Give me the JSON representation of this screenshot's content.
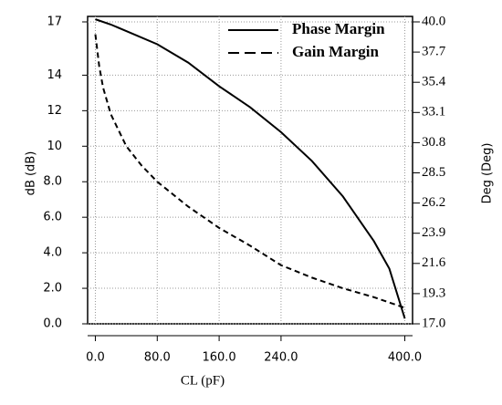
{
  "chart_data": {
    "type": "line",
    "xlabel": "CL (pF)",
    "ylabel": "dB (dB)",
    "y2label": "Deg (Deg)",
    "xlim": [
      -10,
      410
    ],
    "xticks": [
      {
        "value": 0,
        "label": "0.0"
      },
      {
        "value": 80,
        "label": "80.0"
      },
      {
        "value": 160,
        "label": "160.0"
      },
      {
        "value": 240,
        "label": "240.0"
      },
      {
        "value": 400,
        "label": "400.0"
      }
    ],
    "ylim": [
      0,
      17
    ],
    "yticks": [
      {
        "value": 0,
        "label": "0.0"
      },
      {
        "value": 2,
        "label": "2.0"
      },
      {
        "value": 4,
        "label": "4.0"
      },
      {
        "value": 6,
        "label": "6.0"
      },
      {
        "value": 8,
        "label": "8.0"
      },
      10,
      12,
      14,
      17
    ],
    "y2lim": [
      17,
      40
    ],
    "y2ticks": [
      {
        "value": 17,
        "label": "17.0"
      },
      19.3,
      21.6,
      23.9,
      26.2,
      28.5,
      30.8,
      33.1,
      35.4,
      37.7,
      {
        "value": 40,
        "label": "40.0"
      }
    ],
    "grid": true,
    "legend": "upper right",
    "series": [
      {
        "name": "Phase Margin",
        "color": "#000000",
        "dash": false,
        "axis": "y2",
        "x": [
          0,
          20,
          40,
          80,
          120,
          160,
          200,
          240,
          280,
          320,
          360,
          380,
          400
        ],
        "values": [
          40.2,
          39.8,
          39.3,
          38.3,
          36.9,
          35.1,
          33.5,
          31.6,
          29.4,
          26.7,
          23.3,
          21.2,
          17.4
        ]
      },
      {
        "name": "Gain Margin",
        "color": "#000000",
        "dash": true,
        "x": [
          0,
          5,
          10,
          20,
          40,
          60,
          80,
          120,
          160,
          200,
          240,
          280,
          320,
          360,
          400
        ],
        "values": [
          16.3,
          14.5,
          13.3,
          11.8,
          10.0,
          8.9,
          8.0,
          6.6,
          5.4,
          4.4,
          3.3,
          2.6,
          2.0,
          1.5,
          0.9
        ]
      }
    ]
  }
}
